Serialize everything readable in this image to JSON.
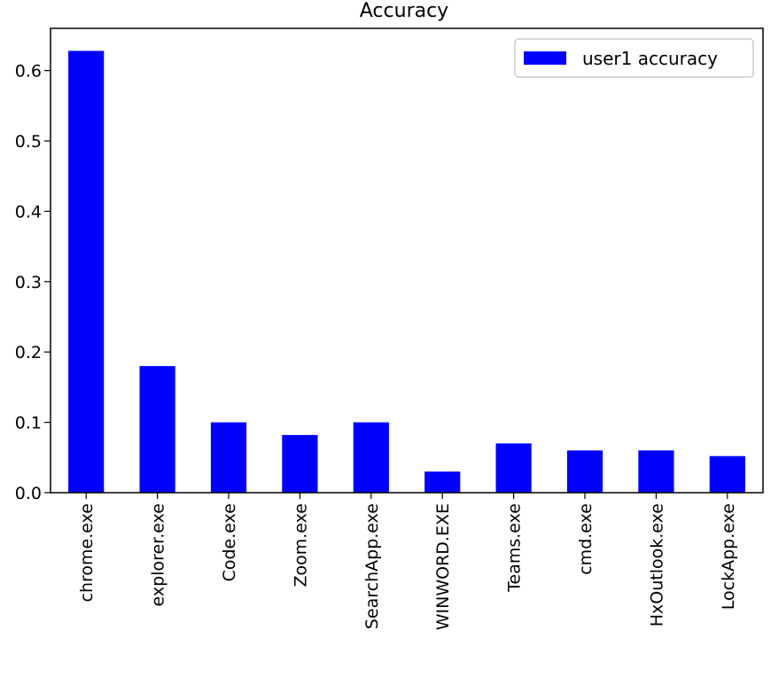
{
  "chart_data": {
    "type": "bar",
    "title": "Accuracy",
    "categories": [
      "chrome.exe",
      "explorer.exe",
      "Code.exe",
      "Zoom.exe",
      "SearchApp.exe",
      "WINWORD.EXE",
      "Teams.exe",
      "cmd.exe",
      "HxOutlook.exe",
      "LockApp.exe"
    ],
    "series": [
      {
        "name": "user1 accuracy",
        "color": "#0000ff",
        "values": [
          0.628,
          0.18,
          0.1,
          0.082,
          0.1,
          0.03,
          0.07,
          0.06,
          0.06,
          0.052
        ]
      }
    ],
    "yticks": [
      0.0,
      0.1,
      0.2,
      0.3,
      0.4,
      0.5,
      0.6
    ],
    "ytick_labels": [
      "0.0",
      "0.1",
      "0.2",
      "0.3",
      "0.4",
      "0.5",
      "0.6"
    ],
    "ylim": [
      0,
      0.66
    ],
    "grid": false,
    "legend_position": "top-right"
  }
}
